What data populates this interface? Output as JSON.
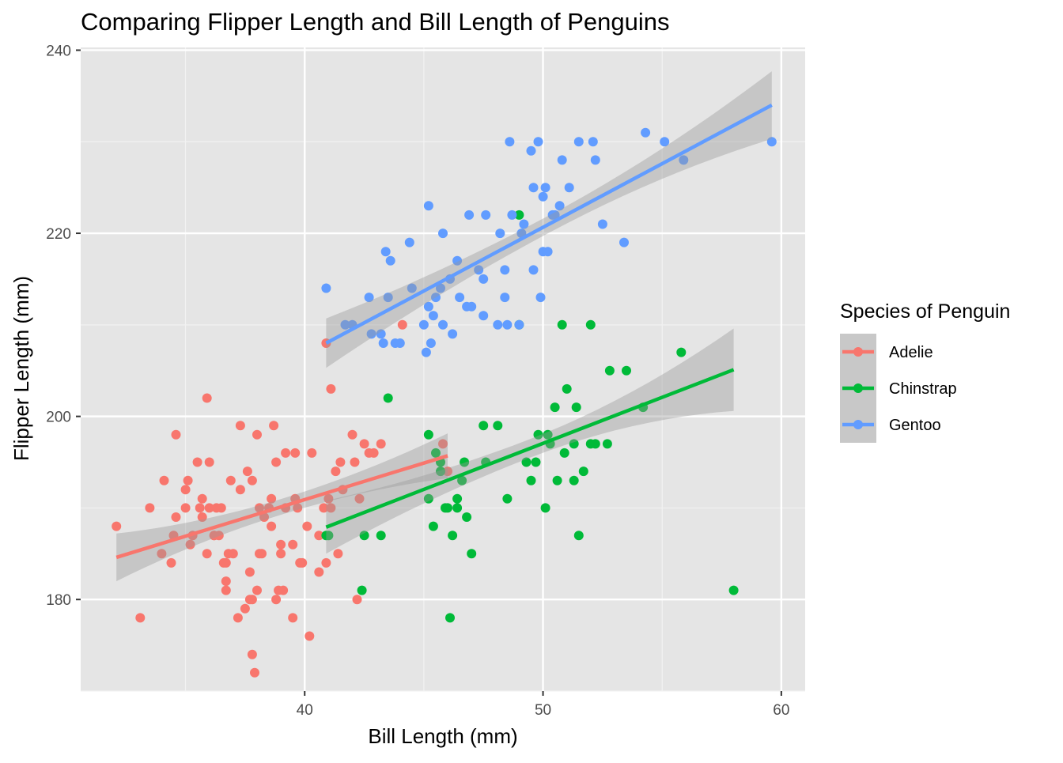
{
  "chart_data": {
    "type": "scatter",
    "title": "Comparing Flipper Length and Bill Length of Penguins",
    "xlabel": "Bill Length (mm)",
    "ylabel": "Flipper Length (mm)",
    "xlim": [
      30.6,
      61.0
    ],
    "ylim": [
      170.0,
      240.3
    ],
    "x_ticks": [
      40,
      50,
      60
    ],
    "y_ticks": [
      180,
      200,
      220,
      240
    ],
    "grid": true,
    "panel_background": "#e5e5e5",
    "legend": {
      "title": "Species of Penguin",
      "position": "right",
      "entries": [
        "Adelie",
        "Chinstrap",
        "Gentoo"
      ]
    },
    "series": [
      {
        "name": "Adelie",
        "color": "#f8766d",
        "points": [
          [
            32.1,
            188
          ],
          [
            33.1,
            178
          ],
          [
            33.5,
            190
          ],
          [
            34.0,
            185
          ],
          [
            34.1,
            193
          ],
          [
            34.4,
            184
          ],
          [
            34.5,
            187
          ],
          [
            34.6,
            198
          ],
          [
            34.6,
            189
          ],
          [
            35.0,
            190
          ],
          [
            35.0,
            192
          ],
          [
            35.1,
            193
          ],
          [
            35.2,
            186
          ],
          [
            35.3,
            187
          ],
          [
            35.5,
            195
          ],
          [
            35.6,
            190
          ],
          [
            35.7,
            191
          ],
          [
            35.7,
            189
          ],
          [
            35.9,
            202
          ],
          [
            35.9,
            185
          ],
          [
            36.0,
            195
          ],
          [
            36.0,
            190
          ],
          [
            36.2,
            187
          ],
          [
            36.2,
            187
          ],
          [
            36.3,
            190
          ],
          [
            36.4,
            187
          ],
          [
            36.5,
            190
          ],
          [
            36.6,
            184
          ],
          [
            36.7,
            184
          ],
          [
            36.7,
            182
          ],
          [
            36.7,
            181
          ],
          [
            36.8,
            185
          ],
          [
            36.9,
            193
          ],
          [
            37.0,
            185
          ],
          [
            37.2,
            178
          ],
          [
            37.3,
            192
          ],
          [
            37.3,
            199
          ],
          [
            37.5,
            179
          ],
          [
            37.6,
            194
          ],
          [
            37.7,
            180
          ],
          [
            37.7,
            183
          ],
          [
            37.8,
            180
          ],
          [
            37.8,
            174
          ],
          [
            37.9,
            172
          ],
          [
            37.8,
            193
          ],
          [
            38.0,
            181
          ],
          [
            38.0,
            198
          ],
          [
            38.1,
            185
          ],
          [
            38.1,
            190
          ],
          [
            38.2,
            185
          ],
          [
            38.3,
            189
          ],
          [
            38.5,
            190
          ],
          [
            38.6,
            188
          ],
          [
            38.6,
            191
          ],
          [
            38.7,
            199
          ],
          [
            38.8,
            180
          ],
          [
            38.8,
            195
          ],
          [
            38.9,
            181
          ],
          [
            39.0,
            186
          ],
          [
            39.0,
            185
          ],
          [
            39.1,
            181
          ],
          [
            39.2,
            190
          ],
          [
            39.2,
            196
          ],
          [
            39.5,
            178
          ],
          [
            39.5,
            186
          ],
          [
            39.6,
            191
          ],
          [
            39.6,
            196
          ],
          [
            39.7,
            190
          ],
          [
            39.8,
            184
          ],
          [
            39.9,
            184
          ],
          [
            40.1,
            188
          ],
          [
            40.2,
            176
          ],
          [
            40.3,
            196
          ],
          [
            40.6,
            183
          ],
          [
            40.6,
            187
          ],
          [
            40.8,
            190
          ],
          [
            40.9,
            184
          ],
          [
            41.0,
            191
          ],
          [
            41.1,
            203
          ],
          [
            41.1,
            190
          ],
          [
            41.3,
            194
          ],
          [
            41.4,
            185
          ],
          [
            41.5,
            195
          ],
          [
            41.6,
            192
          ],
          [
            42.0,
            198
          ],
          [
            42.1,
            195
          ],
          [
            42.2,
            180
          ],
          [
            42.3,
            191
          ],
          [
            42.5,
            197
          ],
          [
            42.7,
            196
          ],
          [
            42.9,
            196
          ],
          [
            43.2,
            197
          ],
          [
            44.1,
            210
          ],
          [
            45.8,
            197
          ],
          [
            46.0,
            194
          ],
          [
            40.9,
            208
          ]
        ]
      },
      {
        "name": "Chinstrap",
        "color": "#00ba38",
        "points": [
          [
            40.9,
            187
          ],
          [
            41.0,
            187
          ],
          [
            42.4,
            181
          ],
          [
            42.5,
            187
          ],
          [
            43.2,
            187
          ],
          [
            43.5,
            202
          ],
          [
            45.2,
            198
          ],
          [
            45.2,
            191
          ],
          [
            45.4,
            188
          ],
          [
            45.5,
            196
          ],
          [
            45.7,
            195
          ],
          [
            45.7,
            194
          ],
          [
            46.0,
            190
          ],
          [
            46.1,
            178
          ],
          [
            46.2,
            187
          ],
          [
            46.4,
            191
          ],
          [
            46.4,
            190
          ],
          [
            46.6,
            193
          ],
          [
            46.7,
            195
          ],
          [
            46.8,
            189
          ],
          [
            47.0,
            185
          ],
          [
            47.5,
            199
          ],
          [
            48.1,
            199
          ],
          [
            48.5,
            191
          ],
          [
            49.0,
            210
          ],
          [
            49.0,
            222
          ],
          [
            49.3,
            195
          ],
          [
            49.5,
            193
          ],
          [
            49.7,
            195
          ],
          [
            49.8,
            198
          ],
          [
            50.1,
            190
          ],
          [
            50.2,
            198
          ],
          [
            50.3,
            197
          ],
          [
            50.5,
            201
          ],
          [
            50.6,
            193
          ],
          [
            50.8,
            210
          ],
          [
            50.9,
            196
          ],
          [
            51.0,
            203
          ],
          [
            51.3,
            197
          ],
          [
            51.3,
            193
          ],
          [
            51.4,
            201
          ],
          [
            51.5,
            187
          ],
          [
            51.7,
            194
          ],
          [
            52.0,
            197
          ],
          [
            52.0,
            210
          ],
          [
            52.2,
            197
          ],
          [
            52.7,
            197
          ],
          [
            52.8,
            205
          ],
          [
            53.5,
            205
          ],
          [
            54.2,
            201
          ],
          [
            55.8,
            207
          ],
          [
            58.0,
            181
          ],
          [
            45.9,
            190
          ],
          [
            47.6,
            195
          ]
        ]
      },
      {
        "name": "Gentoo",
        "color": "#619cff",
        "points": [
          [
            40.9,
            214
          ],
          [
            41.7,
            210
          ],
          [
            42.0,
            210
          ],
          [
            42.7,
            213
          ],
          [
            42.8,
            209
          ],
          [
            43.2,
            209
          ],
          [
            43.3,
            208
          ],
          [
            43.4,
            218
          ],
          [
            43.5,
            213
          ],
          [
            43.6,
            217
          ],
          [
            43.8,
            208
          ],
          [
            44.0,
            208
          ],
          [
            44.4,
            219
          ],
          [
            44.5,
            214
          ],
          [
            45.0,
            210
          ],
          [
            45.1,
            207
          ],
          [
            45.2,
            212
          ],
          [
            45.2,
            223
          ],
          [
            45.3,
            208
          ],
          [
            45.4,
            211
          ],
          [
            45.5,
            213
          ],
          [
            45.7,
            214
          ],
          [
            45.8,
            210
          ],
          [
            46.1,
            215
          ],
          [
            46.2,
            209
          ],
          [
            46.4,
            217
          ],
          [
            46.5,
            213
          ],
          [
            46.8,
            212
          ],
          [
            47.0,
            212
          ],
          [
            47.3,
            216
          ],
          [
            47.5,
            215
          ],
          [
            47.6,
            222
          ],
          [
            48.1,
            210
          ],
          [
            48.2,
            220
          ],
          [
            48.4,
            213
          ],
          [
            48.5,
            210
          ],
          [
            48.6,
            230
          ],
          [
            48.7,
            222
          ],
          [
            49.0,
            210
          ],
          [
            49.1,
            220
          ],
          [
            49.2,
            221
          ],
          [
            49.5,
            229
          ],
          [
            49.6,
            225
          ],
          [
            49.8,
            230
          ],
          [
            49.9,
            213
          ],
          [
            50.0,
            218
          ],
          [
            50.1,
            225
          ],
          [
            50.2,
            218
          ],
          [
            50.4,
            222
          ],
          [
            50.5,
            222
          ],
          [
            50.7,
            223
          ],
          [
            50.8,
            228
          ],
          [
            51.1,
            225
          ],
          [
            51.5,
            230
          ],
          [
            52.1,
            230
          ],
          [
            52.2,
            228
          ],
          [
            52.5,
            221
          ],
          [
            53.4,
            219
          ],
          [
            54.3,
            231
          ],
          [
            55.1,
            230
          ],
          [
            55.9,
            228
          ],
          [
            59.6,
            230
          ],
          [
            48.4,
            216
          ],
          [
            49.6,
            216
          ],
          [
            50.0,
            224
          ],
          [
            46.9,
            222
          ],
          [
            45.8,
            220
          ],
          [
            47.5,
            211
          ]
        ]
      }
    ],
    "fits": [
      {
        "name": "Adelie",
        "method": "lm",
        "x_range": [
          32.1,
          46.0
        ],
        "y_range": [
          184.6,
          195.7
        ],
        "ci_band": [
          [
            182.0,
            187.2
          ],
          [
            193.5,
            198.4
          ]
        ]
      },
      {
        "name": "Chinstrap",
        "method": "lm",
        "x_range": [
          40.9,
          58.0
        ],
        "y_range": [
          187.9,
          205.1
        ],
        "ci_band": [
          [
            185.0,
            190.8
          ],
          [
            200.6,
            209.6
          ]
        ]
      },
      {
        "name": "Gentoo",
        "method": "lm",
        "x_range": [
          40.9,
          59.6
        ],
        "y_range": [
          208.0,
          234.0
        ],
        "ci_band": [
          [
            205.3,
            210.7
          ],
          [
            230.3,
            237.7
          ]
        ]
      }
    ]
  }
}
